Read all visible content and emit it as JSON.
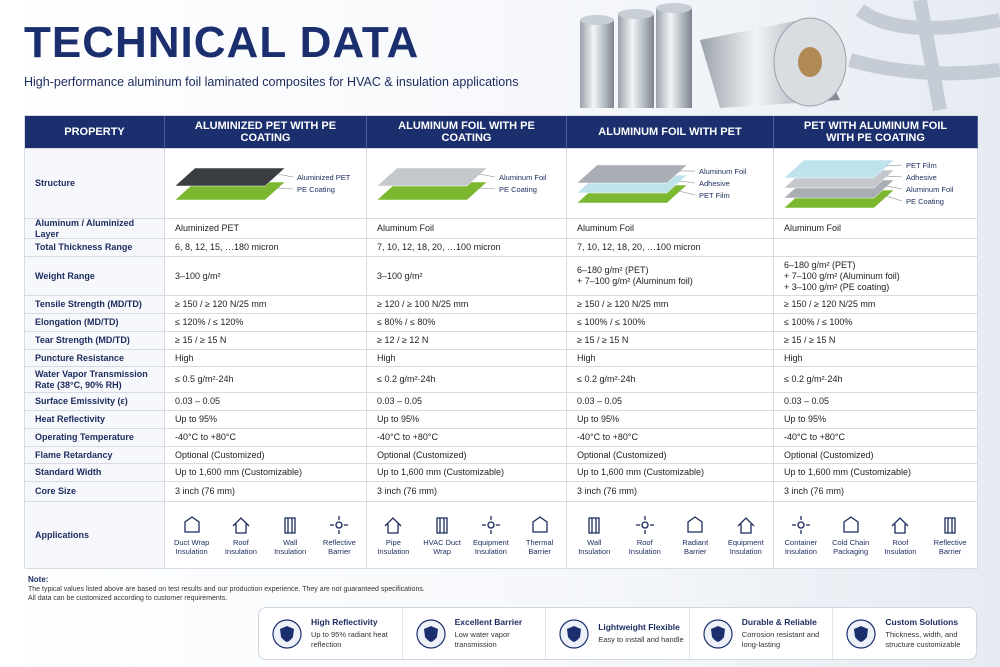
{
  "header": {
    "title": "TECHNICAL DATA",
    "subtitle": "High-performance aluminum foil laminated composites for HVAC & insulation applications"
  },
  "table": {
    "columns": [
      "PROPERTY",
      "ALUMINIZED PET WITH PE COATING",
      "ALUMINUM FOIL WITH PE COATING",
      "ALUMINUM FOIL WITH PET",
      "PET WITH ALUMINUM FOIL WITH PE COATING"
    ],
    "structure": {
      "property": "Structure",
      "layers": [
        [
          "Aluminized PET",
          "PE Coating"
        ],
        [
          "Aluminum Foil",
          "PE Coating"
        ],
        [
          "Aluminum Foil",
          "Adhesive",
          "PET Film"
        ],
        [
          "PET Film",
          "Adhesive",
          "Aluminum Foil",
          "PE Coating"
        ]
      ]
    },
    "rows": [
      {
        "property": "Aluminum / Aluminized Layer",
        "cells": [
          "Aluminized PET",
          "Aluminum Foil",
          "Aluminum Foil",
          "Aluminum Foil"
        ]
      },
      {
        "property": "Total Thickness Range",
        "cells": [
          "6, 8, 12, 15, …180 micron",
          "7, 10, 12, 18, 20, …100 micron",
          "7, 10, 12, 18, 20, …100 micron",
          ""
        ]
      },
      {
        "property": "Weight Range",
        "cells": [
          "3–100 g/m²",
          "3–100 g/m²",
          [
            "6–180 g/m² (PET)",
            "+ 7–100 g/m² (Aluminum foil)"
          ],
          [
            "6–180 g/m² (PET)",
            "+ 7–100 g/m² (Aluminum foil)",
            "+ 3–100 g/m² (PE coating)"
          ]
        ]
      },
      {
        "property": "Tensile Strength (MD/TD)",
        "cells": [
          "≥ 150 / ≥ 120 N/25 mm",
          "≥ 120 / ≥ 100 N/25 mm",
          "≥ 150 / ≥ 120 N/25 mm",
          "≥ 150 / ≥ 120 N/25 mm"
        ]
      },
      {
        "property": "Elongation (MD/TD)",
        "cells": [
          "≤ 120% / ≤ 120%",
          "≤ 80% / ≤ 80%",
          "≤ 100% / ≤ 100%",
          "≤ 100% / ≤ 100%"
        ]
      },
      {
        "property": "Tear Strength (MD/TD)",
        "cells": [
          "≥ 15 / ≥ 15 N",
          "≥ 12 / ≥ 12 N",
          "≥ 15 / ≥ 15 N",
          "≥ 15 / ≥ 15 N"
        ]
      },
      {
        "property": "Puncture Resistance",
        "cells": [
          "High",
          "High",
          "High",
          "High"
        ]
      },
      {
        "property": "Water Vapor Transmission Rate (38°C, 90% RH)",
        "cells": [
          "≤ 0.5 g/m²·24h",
          "≤ 0.2 g/m²·24h",
          "≤ 0.2 g/m²·24h",
          "≤ 0.2 g/m²·24h"
        ]
      },
      {
        "property": "Surface Emissivity (ε)",
        "cells": [
          "0.03 – 0.05",
          "0.03 – 0.05",
          "0.03 – 0.05",
          "0.03 – 0.05"
        ]
      },
      {
        "property": "Heat Reflectivity",
        "cells": [
          "Up to 95%",
          "Up to 95%",
          "Up to 95%",
          "Up to 95%"
        ]
      },
      {
        "property": "Operating Temperature",
        "cells": [
          "-40°C to +80°C",
          "-40°C to +80°C",
          "-40°C to +80°C",
          "-40°C to +80°C"
        ]
      },
      {
        "property": "Flame Retardancy",
        "cells": [
          "Optional (Customized)",
          "Optional (Customized)",
          "Optional (Customized)",
          "Optional (Customized)"
        ]
      },
      {
        "property": "Standard Width",
        "cells": [
          "Up to 1,600 mm (Customizable)",
          "Up to 1,600 mm (Customizable)",
          "Up to 1,600 mm (Customizable)",
          "Up to 1,600 mm (Customizable)"
        ]
      },
      {
        "property": "Core Size",
        "cells": [
          "3 inch (76 mm)",
          "3 inch (76 mm)",
          "3 inch (76 mm)",
          "3 inch (76 mm)"
        ]
      }
    ],
    "applications": {
      "property": "Applications",
      "items": [
        [
          "Duct Wrap Insulation",
          "Roof Insulation",
          "Wall Insulation",
          "Reflective Barrier"
        ],
        [
          "Pipe Insulation",
          "HVAC Duct Wrap",
          "Equipment Insulation",
          "Thermal Barrier"
        ],
        [
          "Wall Insulation",
          "Roof Insulation",
          "Radiant Barrier",
          "Equipment Insulation"
        ],
        [
          "Container Insulation",
          "Cold Chain Packaging",
          "Roof Insulation",
          "Reflective Barrier"
        ]
      ]
    }
  },
  "note": {
    "title": "Note:",
    "lines": [
      "The typical values listed above are based on test results and our production experience. They are not guaranteed specifications.",
      "All data can be customized according to customer requirements."
    ]
  },
  "features": [
    {
      "title": "High Reflectivity",
      "desc": "Up to 95% radiant heat reflection"
    },
    {
      "title": "Excellent Barrier",
      "desc": "Low water vapor transmission"
    },
    {
      "title": "Lightweight  Flexible",
      "desc": "Easy to install and handle"
    },
    {
      "title": "Durable & Reliable",
      "desc": "Corrosion resistant and long-lasting"
    },
    {
      "title": "Custom Solutions",
      "desc": "Thickness, width, and structure customizable"
    }
  ]
}
